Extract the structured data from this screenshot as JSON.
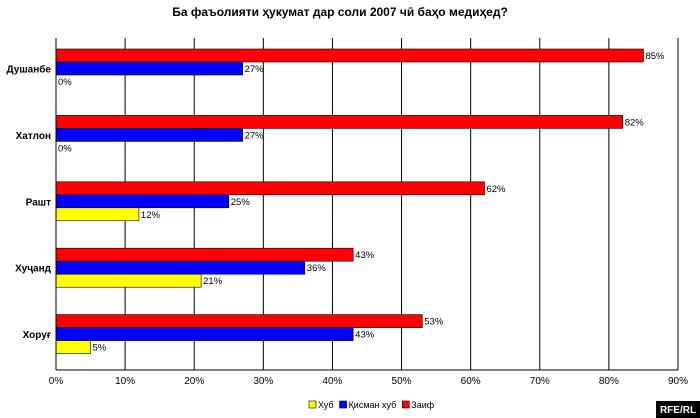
{
  "chart_data": {
    "type": "bar",
    "orientation": "horizontal",
    "title": "Ба фаъолияти ҳукумат дар соли 2007 чӣ баҳо медиҳед?",
    "categories": [
      "Душанбе",
      "Хатлон",
      "Рашт",
      "Хуҷанд",
      "Хоруғ"
    ],
    "series": [
      {
        "name": "Хуб",
        "color": "#ffff00",
        "values": [
          0,
          0,
          12,
          21,
          5
        ]
      },
      {
        "name": "Қисман хуб",
        "color": "#0000ff",
        "values": [
          27,
          27,
          25,
          36,
          43
        ]
      },
      {
        "name": "Заиф",
        "color": "#ff0000",
        "values": [
          85,
          82,
          62,
          43,
          53
        ]
      }
    ],
    "value_suffix": "%",
    "xlim": [
      0,
      90
    ],
    "xticks": [
      "0%",
      "10%",
      "20%",
      "30%",
      "40%",
      "50%",
      "60%",
      "70%",
      "80%",
      "90%"
    ],
    "grid": true,
    "legend_position": "bottom-center",
    "xlabel": "",
    "ylabel": ""
  },
  "watermark": "RFE/RL"
}
